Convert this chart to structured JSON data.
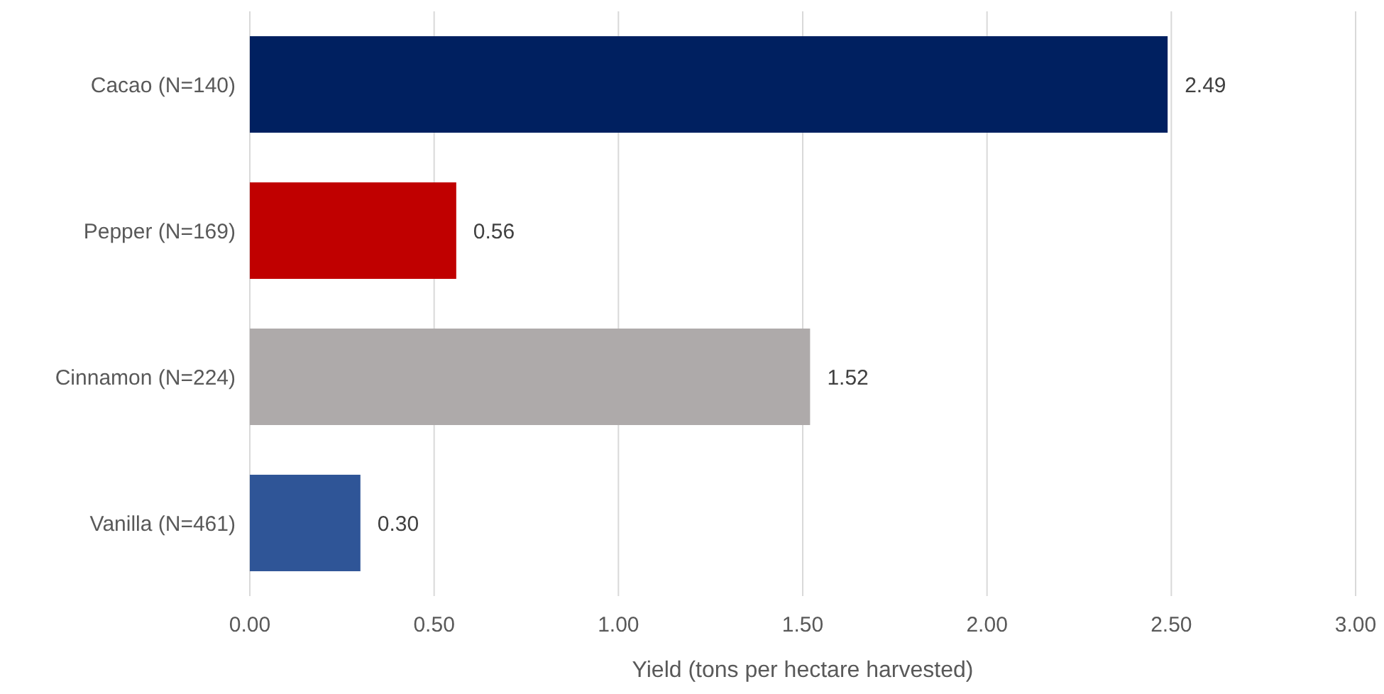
{
  "chart_data": {
    "type": "bar",
    "orientation": "horizontal",
    "xlabel": "Yield (tons per hectare harvested)",
    "categories": [
      "Cacao (N=140)",
      "Pepper (N=169)",
      "Cinnamon (N=224)",
      "Vanilla (N=461)"
    ],
    "values": [
      2.49,
      0.56,
      1.52,
      0.3
    ],
    "colors": [
      "#002060",
      "#c00000",
      "#aeaaaa",
      "#2f5597"
    ],
    "value_labels": [
      "2.49",
      "0.56",
      "1.52",
      "0.30"
    ],
    "xlim": [
      0,
      3
    ],
    "xticks": [
      {
        "value": 0,
        "label": "0.00"
      },
      {
        "value": 0.5,
        "label": "0.50"
      },
      {
        "value": 1,
        "label": "1.00"
      },
      {
        "value": 1.5,
        "label": "1.50"
      },
      {
        "value": 2,
        "label": "2.00"
      },
      {
        "value": 2.5,
        "label": "2.50"
      },
      {
        "value": 3,
        "label": "3.00"
      }
    ],
    "grid": "x"
  }
}
